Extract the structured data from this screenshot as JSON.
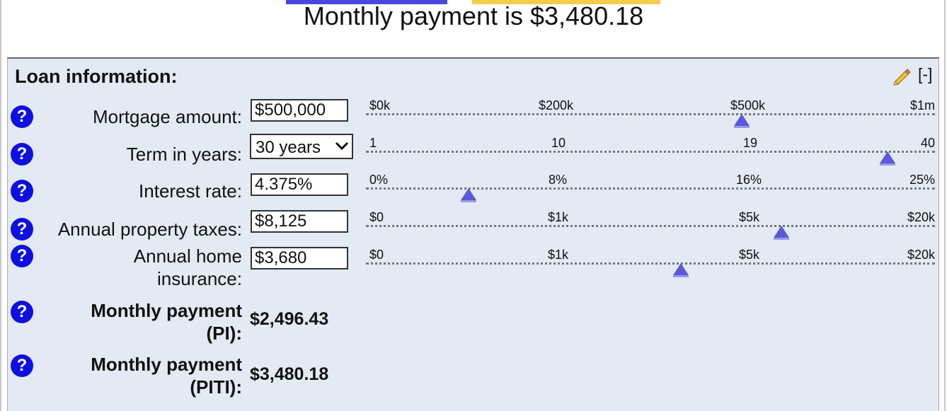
{
  "summary": {
    "text": "Monthly payment is $3,480.18",
    "colors": {
      "pi": "#4848e0",
      "taxes_insurance": "#f5cd4a"
    }
  },
  "panel": {
    "title": "Loan information:",
    "collapse_label": "[-]",
    "edit_icon": "pencil-icon",
    "background": "#e3eaf4"
  },
  "help_glyph": "?",
  "fields": {
    "mortgage": {
      "label": "Mortgage amount:",
      "value": "$500,000",
      "ticks": [
        "$0k",
        "$200k",
        "$500k",
        "$1m"
      ],
      "slider_level": 500000
    },
    "term": {
      "label": "Term in years:",
      "value": "30 years",
      "ticks": [
        "1",
        "10",
        "19",
        "40"
      ],
      "slider_level": 30
    },
    "rate": {
      "label": "Interest rate:",
      "value": "4.375%",
      "ticks": [
        "0%",
        "8%",
        "16%",
        "25%"
      ],
      "slider_level": 4.375
    },
    "taxes": {
      "label": "Annual property taxes:",
      "value": "$8,125",
      "ticks": [
        "$0",
        "$1k",
        "$5k",
        "$20k"
      ],
      "slider_level": 8125
    },
    "insurance": {
      "label_line1": "Annual home",
      "label_line2": "insurance:",
      "value": "$3,680",
      "ticks": [
        "$0",
        "$1k",
        "$5k",
        "$20k"
      ],
      "slider_level": 3680
    }
  },
  "results": {
    "pi": {
      "label_line1": "Monthly payment",
      "label_line2": "(PI):",
      "value": "$2,496.43"
    },
    "piti": {
      "label_line1": "Monthly payment",
      "label_line2": "(PITI):",
      "value": "$3,480.18"
    }
  },
  "slider_color": "#5a5ad8"
}
